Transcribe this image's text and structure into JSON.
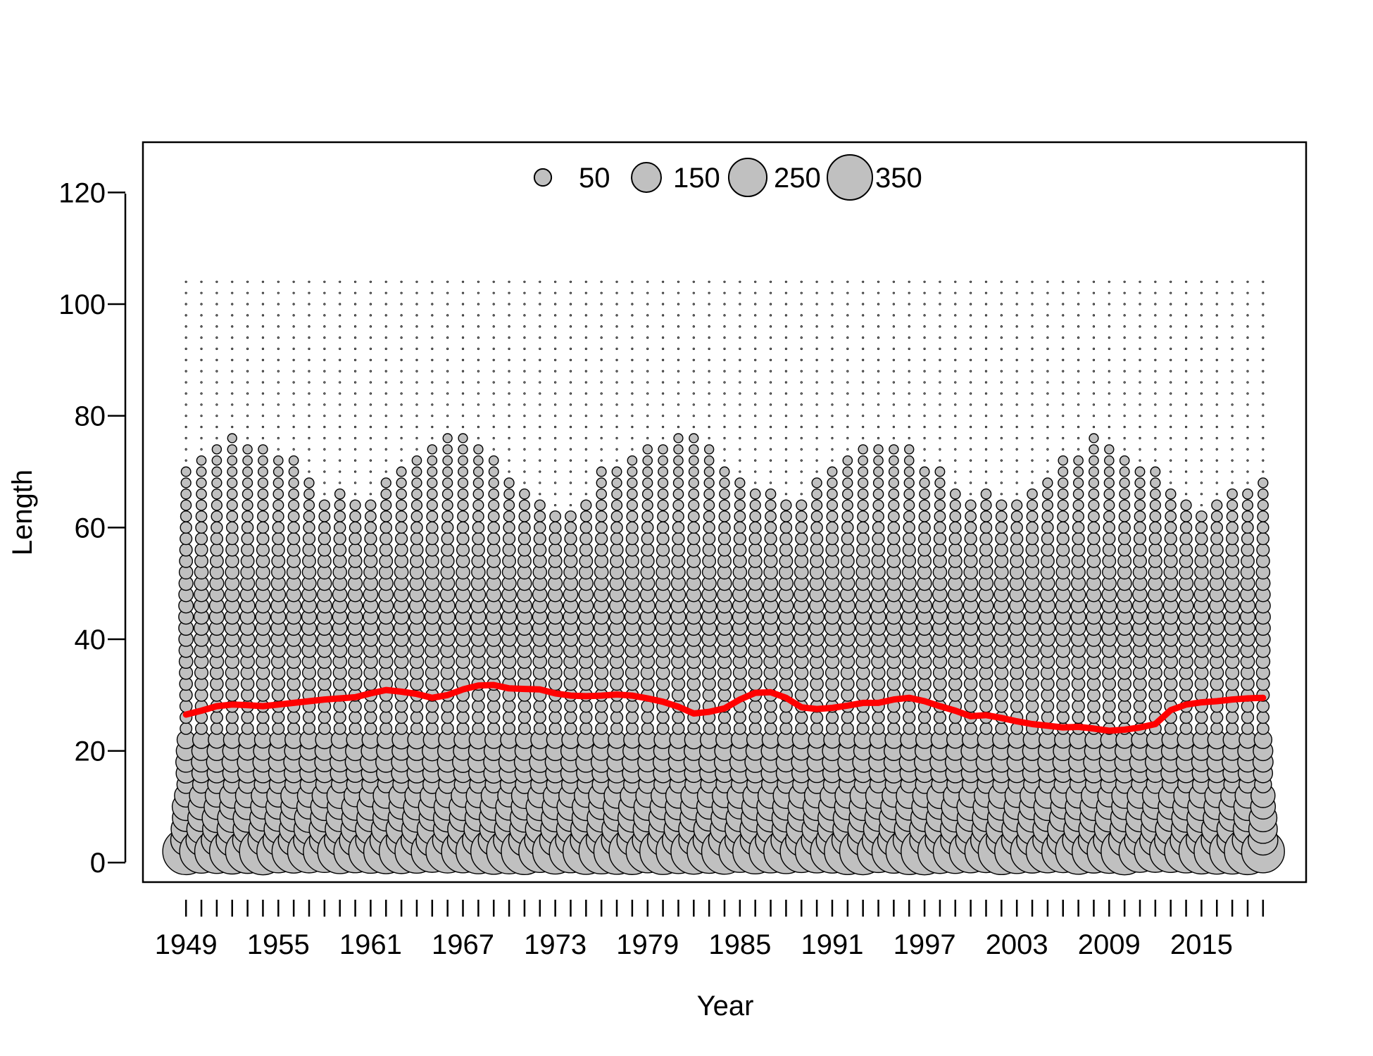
{
  "chart_data": {
    "type": "scatter",
    "subtype": "bubble",
    "xlabel": "Year",
    "ylabel": "Length",
    "xlim": [
      1946.2,
      2021.8
    ],
    "ylim": [
      -3.5,
      129
    ],
    "y_ticks": [
      0,
      20,
      40,
      60,
      80,
      100,
      120
    ],
    "y_tick_labels": [
      "0",
      "20",
      "40",
      "60",
      "80",
      "100",
      "120"
    ],
    "x_ticks": [
      1949,
      1950,
      1951,
      1952,
      1953,
      1954,
      1955,
      1956,
      1957,
      1958,
      1959,
      1960,
      1961,
      1962,
      1963,
      1964,
      1965,
      1966,
      1967,
      1968,
      1969,
      1970,
      1971,
      1972,
      1973,
      1974,
      1975,
      1976,
      1977,
      1978,
      1979,
      1980,
      1981,
      1982,
      1983,
      1984,
      1985,
      1986,
      1987,
      1988,
      1989,
      1990,
      1991,
      1992,
      1993,
      1994,
      1995,
      1996,
      1997,
      1998,
      1999,
      2000,
      2001,
      2002,
      2003,
      2004,
      2005,
      2006,
      2007,
      2008,
      2009,
      2010,
      2011,
      2012,
      2013,
      2014,
      2015,
      2016,
      2017,
      2018,
      2019
    ],
    "x_tick_labels": [
      {
        "year": 1949,
        "label": "1949"
      },
      {
        "year": 1955,
        "label": "1955"
      },
      {
        "year": 1961,
        "label": "1961"
      },
      {
        "year": 1967,
        "label": "1967"
      },
      {
        "year": 1973,
        "label": "1973"
      },
      {
        "year": 1979,
        "label": "1979"
      },
      {
        "year": 1985,
        "label": "1985"
      },
      {
        "year": 1991,
        "label": "1991"
      },
      {
        "year": 1997,
        "label": "1997"
      },
      {
        "year": 2003,
        "label": "2003"
      },
      {
        "year": 2009,
        "label": "2009"
      },
      {
        "year": 2015,
        "label": "2015"
      }
    ],
    "years": [
      1949,
      2019
    ],
    "length_bins": [
      2,
      104,
      2
    ],
    "grid": false,
    "legend_position": "top-center",
    "legend": [
      {
        "value": 50,
        "label": "50"
      },
      {
        "value": 150,
        "label": "150"
      },
      {
        "value": 250,
        "label": "250"
      },
      {
        "value": 350,
        "label": "350"
      }
    ],
    "bubble_max_value": 350,
    "bubble_fill": "#c0c0c0",
    "bubble_stroke": "#000000",
    "mean_line_color": "#ff0000",
    "mean_length_series": {
      "name": "",
      "x": [
        1949,
        1950,
        1951,
        1952,
        1953,
        1954,
        1955,
        1956,
        1957,
        1958,
        1959,
        1960,
        1961,
        1962,
        1963,
        1964,
        1965,
        1966,
        1967,
        1968,
        1969,
        1970,
        1971,
        1972,
        1973,
        1974,
        1975,
        1976,
        1977,
        1978,
        1979,
        1980,
        1981,
        1982,
        1983,
        1984,
        1985,
        1986,
        1987,
        1988,
        1989,
        1990,
        1991,
        1992,
        1993,
        1994,
        1995,
        1996,
        1997,
        1998,
        1999,
        2000,
        2001,
        2002,
        2003,
        2004,
        2005,
        2006,
        2007,
        2008,
        2009,
        2010,
        2011,
        2012,
        2013,
        2014,
        2015,
        2016,
        2017,
        2018,
        2019
      ],
      "y": [
        26.5,
        27.2,
        28.0,
        28.3,
        28.2,
        28.0,
        28.3,
        28.6,
        28.9,
        29.2,
        29.4,
        29.6,
        30.3,
        30.9,
        30.6,
        30.2,
        29.5,
        30.0,
        31.0,
        31.7,
        31.8,
        31.2,
        31.1,
        31.0,
        30.3,
        29.9,
        29.8,
        29.9,
        30.1,
        29.9,
        29.4,
        28.8,
        27.9,
        26.7,
        27.0,
        27.6,
        29.2,
        30.4,
        30.5,
        29.5,
        27.8,
        27.5,
        27.7,
        28.1,
        28.6,
        28.6,
        29.2,
        29.5,
        28.9,
        28.0,
        27.2,
        26.2,
        26.4,
        25.9,
        25.3,
        24.8,
        24.5,
        24.2,
        24.3,
        24.0,
        23.6,
        23.8,
        24.2,
        24.8,
        27.3,
        28.3,
        28.7,
        28.9,
        29.2,
        29.4,
        29.5
      ]
    }
  }
}
